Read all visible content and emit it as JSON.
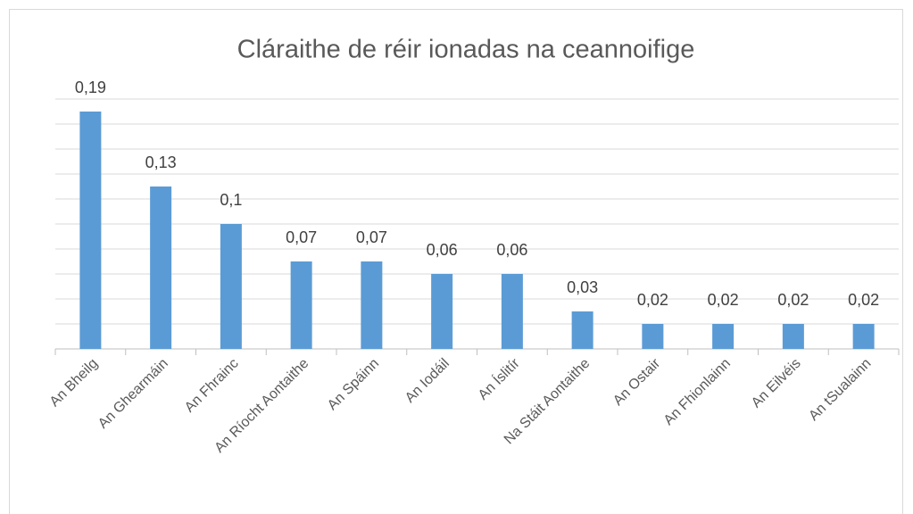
{
  "chart_data": {
    "type": "bar",
    "title": "Cláraithe de réir ionadas na ceannoifige",
    "categories": [
      "An Bheilg",
      "An Ghearmáin",
      "An Fhrainc",
      "An Ríocht Aontaithe",
      "An Spáinn",
      "An Iodáil",
      "An Íslitír",
      "Na Stáit Aontaithe",
      "An Ostair",
      "An Fhionlainn",
      "An Eilvéis",
      "An tSualainn"
    ],
    "values": [
      0.19,
      0.13,
      0.1,
      0.07,
      0.07,
      0.06,
      0.06,
      0.03,
      0.02,
      0.02,
      0.02,
      0.02
    ],
    "value_labels": [
      "0,19",
      "0,13",
      "0,1",
      "0,07",
      "0,07",
      "0,06",
      "0,06",
      "0,03",
      "0,02",
      "0,02",
      "0,02",
      "0,02"
    ],
    "color": "#5b9bd5",
    "ylim": [
      0,
      0.2
    ],
    "yticks": [
      0,
      0.02,
      0.04,
      0.06,
      0.08,
      0.1,
      0.12,
      0.14,
      0.16,
      0.18,
      0.2
    ],
    "grid": true
  }
}
